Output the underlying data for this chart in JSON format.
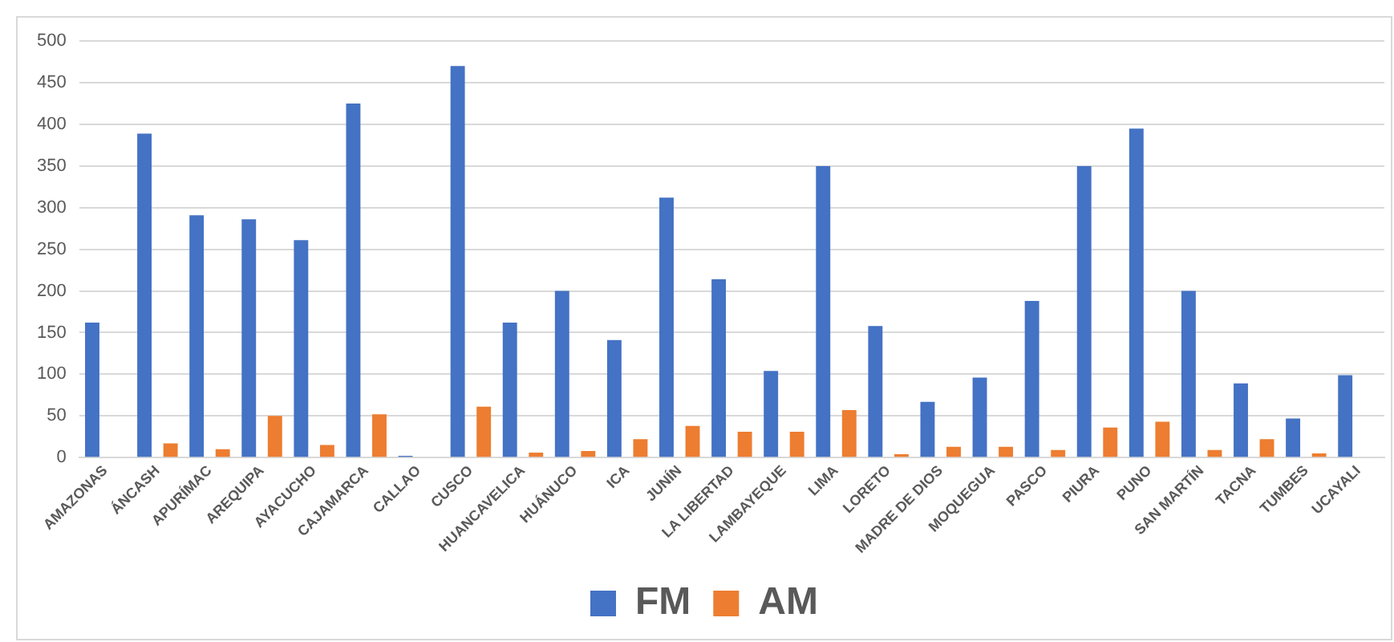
{
  "chart_data": {
    "type": "bar",
    "categories": [
      "AMAZONAS",
      "ÁNCASH",
      "APURÍMAC",
      "AREQUIPA",
      "AYACUCHO",
      "CAJAMARCA",
      "CALLAO",
      "CUSCO",
      "HUANCAVELICA",
      "HUÁNUCO",
      "ICA",
      "JUNÍN",
      "LA LIBERTAD",
      "LAMBAYEQUE",
      "LIMA",
      "LORETO",
      "MADRE DE DIOS",
      "MOQUEGUA",
      "PASCO",
      "PIURA",
      "PUNO",
      "SAN MARTÍN",
      "TACNA",
      "TUMBES",
      "UCAYALI"
    ],
    "series": [
      {
        "name": "FM",
        "color": "#4472c4",
        "values": [
          162,
          389,
          291,
          286,
          261,
          425,
          2,
          470,
          162,
          200,
          141,
          312,
          214,
          104,
          350,
          158,
          67,
          96,
          188,
          350,
          395,
          200,
          89,
          47,
          99
        ]
      },
      {
        "name": "AM",
        "color": "#ed7d31",
        "values": [
          0,
          17,
          10,
          50,
          15,
          52,
          0,
          61,
          6,
          8,
          22,
          38,
          31,
          31,
          57,
          4,
          13,
          13,
          9,
          36,
          43,
          9,
          22,
          5,
          0
        ]
      }
    ],
    "ylim": [
      0,
      500
    ],
    "yticks": [
      0,
      50,
      100,
      150,
      200,
      250,
      300,
      350,
      400,
      450,
      500
    ],
    "grid": "y",
    "legend": "bottom"
  }
}
